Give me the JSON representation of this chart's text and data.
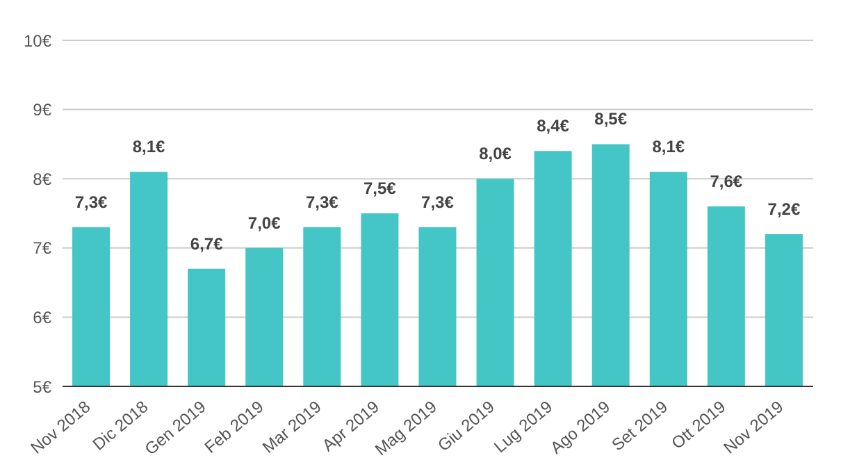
{
  "chart_data": {
    "type": "bar",
    "categories": [
      "Nov 2018",
      "Dic 2018",
      "Gen 2019",
      "Feb 2019",
      "Mar 2019",
      "Apr 2019",
      "Mag 2019",
      "Giu 2019",
      "Lug 2019",
      "Ago 2019",
      "Set 2019",
      "Ott 2019",
      "Nov 2019"
    ],
    "values": [
      7.3,
      8.1,
      6.7,
      7.0,
      7.3,
      7.5,
      7.3,
      8.0,
      8.4,
      8.5,
      8.1,
      7.6,
      7.2
    ],
    "value_labels": [
      "7,3€",
      "8,1€",
      "6,7€",
      "7,0€",
      "7,3€",
      "7,5€",
      "7,3€",
      "8,0€",
      "8,4€",
      "8,5€",
      "8,1€",
      "7,6€",
      "7,2€"
    ],
    "color": "#45c6c6",
    "ylim": [
      5,
      10
    ],
    "yticks": [
      {
        "value": 5,
        "label": "5€"
      },
      {
        "value": 6,
        "label": "6€"
      },
      {
        "value": 7,
        "label": "7€"
      },
      {
        "value": 8,
        "label": "8€"
      },
      {
        "value": 9,
        "label": "9€"
      },
      {
        "value": 10,
        "label": "10€"
      }
    ],
    "grid": "y"
  }
}
